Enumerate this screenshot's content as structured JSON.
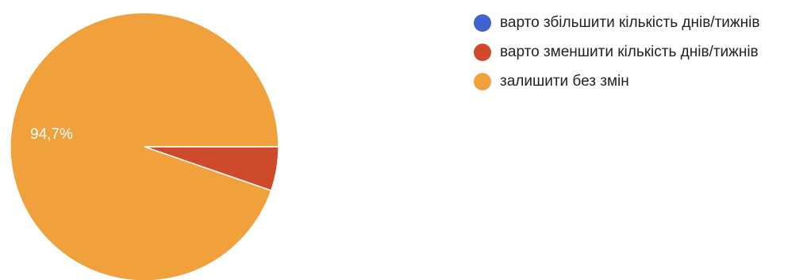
{
  "chart_data": {
    "type": "pie",
    "title": "",
    "series": [
      {
        "name": "варто збільшити кількість днів/тижнів",
        "value": 0.0,
        "color": "#3f64cc"
      },
      {
        "name": "варто зменшити кількість днів/тижнів",
        "value": 5.3,
        "color": "#cf4a2a"
      },
      {
        "name": "залишити без змін",
        "value": 94.7,
        "color": "#f0a13c"
      }
    ],
    "slice_labels": [
      {
        "series": "залишити без змін",
        "text": "94,7%"
      }
    ],
    "legend_position": "right"
  }
}
